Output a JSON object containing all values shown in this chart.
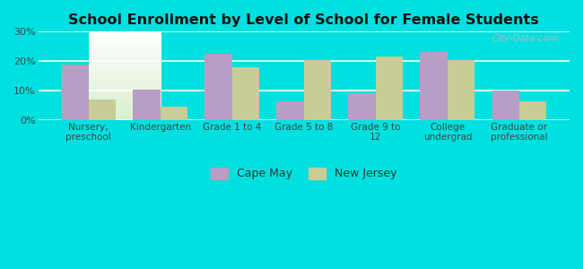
{
  "title": "School Enrollment by Level of School for Female Students",
  "categories": [
    "Nursery,\npreschool",
    "Kindergarten",
    "Grade 1 to 4",
    "Grade 5 to 8",
    "Grade 9 to\n12",
    "College\nundergrad",
    "Graduate or\nprofessional"
  ],
  "cape_may": [
    19,
    10.5,
    22.5,
    6.5,
    9,
    23,
    10
  ],
  "new_jersey": [
    7,
    4.5,
    18,
    20.5,
    21.5,
    20.5,
    6.5
  ],
  "cape_may_color": "#b89ec4",
  "new_jersey_color": "#c8cc96",
  "background_outer": "#00e0e0",
  "background_top": "#ffffff",
  "background_bottom": "#d8f0d0",
  "ylim": [
    0,
    30
  ],
  "yticks": [
    0,
    10,
    20,
    30
  ],
  "ytick_labels": [
    "0%",
    "10%",
    "20%",
    "30%"
  ],
  "legend_cape_may": "Cape May",
  "legend_new_jersey": "New Jersey",
  "bar_width": 0.38,
  "watermark": "City-Data.com"
}
